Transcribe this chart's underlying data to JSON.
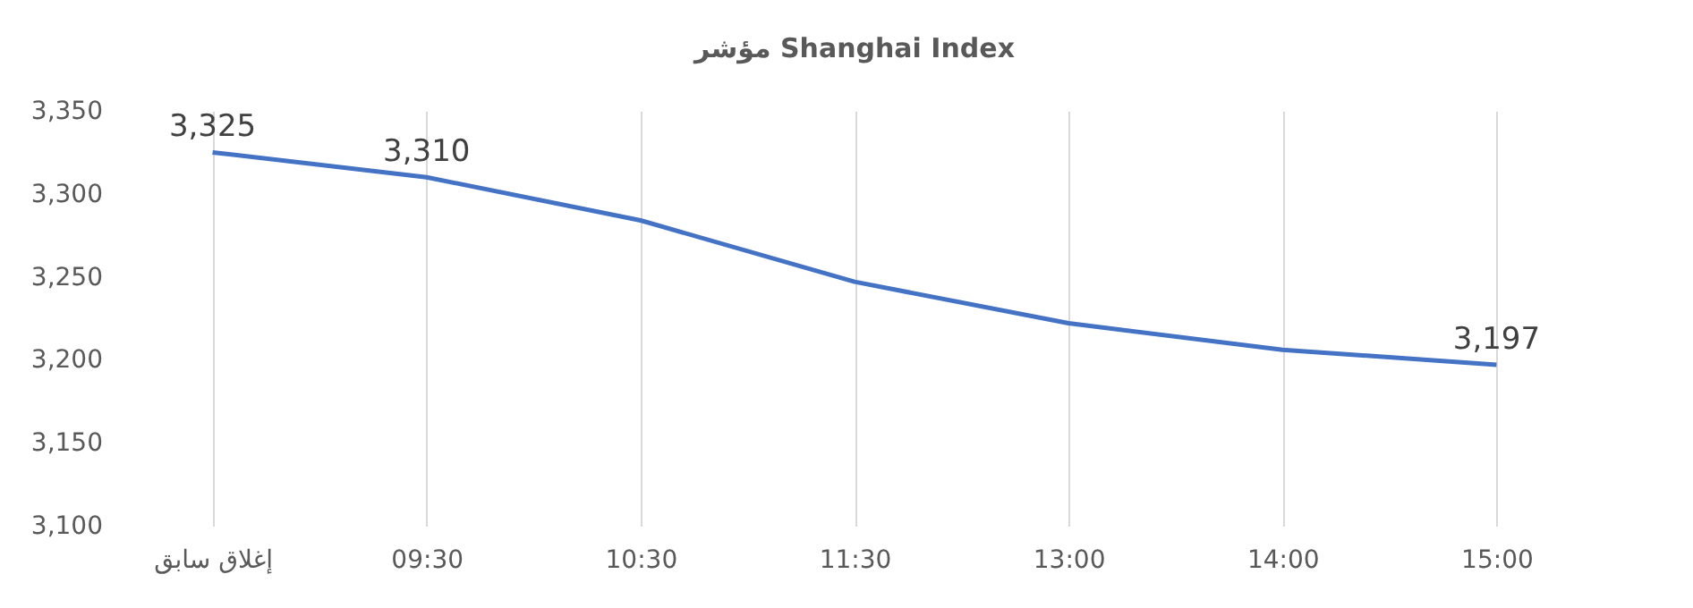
{
  "chart_data": {
    "type": "line",
    "title": "مؤشر Shanghai Index",
    "categories": [
      "إغلاق سابق",
      "09:30",
      "10:30",
      "11:30",
      "13:00",
      "14:00",
      "15:00"
    ],
    "series": [
      {
        "color": "#4472c4",
        "values": [
          3325,
          3310,
          3284,
          3247,
          3222,
          3206,
          3197
        ],
        "value_labels": [
          "3,325",
          "3,310",
          null,
          null,
          null,
          null,
          "3,197"
        ]
      }
    ],
    "ylim": [
      3100,
      3350
    ],
    "yticks": [
      {
        "value": 3100,
        "label": "3,100"
      },
      {
        "value": 3150,
        "label": "3,150"
      },
      {
        "value": 3200,
        "label": "3,200"
      },
      {
        "value": 3250,
        "label": "3,250"
      },
      {
        "value": 3300,
        "label": "3,300"
      },
      {
        "value": 3350,
        "label": "3,350"
      }
    ],
    "grid": "x",
    "legend": false,
    "marker": "none",
    "line_style": "solid"
  }
}
